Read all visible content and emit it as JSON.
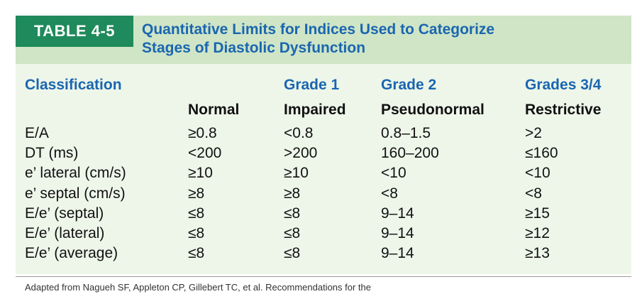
{
  "header": {
    "label": "TABLE 4-5",
    "title": [
      "Quantitative Limits for Indices Used to Categorize",
      "Stages of Diastolic Dysfunction"
    ]
  },
  "table": {
    "headers": [
      {
        "top": "Classification"
      },
      {
        "bottom": "Normal"
      },
      {
        "top": "Grade 1",
        "bottom": "Impaired"
      },
      {
        "top": "Grade 2",
        "bottom": "Pseudonormal"
      },
      {
        "top": "Grades 3/4",
        "bottom": "Restrictive"
      }
    ],
    "rows": [
      [
        "E/A",
        "≥0.8",
        "<0.8",
        "0.8–1.5",
        ">2"
      ],
      [
        "DT (ms)",
        "<200",
        ">200",
        "160–200",
        "≤160"
      ],
      [
        "e’ lateral (cm/s)",
        "≥10",
        "≥10",
        "<10",
        "<10"
      ],
      [
        "e’ septal (cm/s)",
        "≥8",
        "≥8",
        "<8",
        "<8"
      ],
      [
        "E/e’ (septal)",
        "≤8",
        "≤8",
        "9–14",
        "≥15"
      ],
      [
        "E/e’ (lateral)",
        "≤8",
        "≤8",
        "9–14",
        "≥12"
      ],
      [
        "E/e’ (average)",
        "≤8",
        "≤8",
        "9–14",
        "≥13"
      ]
    ]
  },
  "footer": "Adapted from Nagueh SF, Appleton CP, Gillebert TC, et al. Recommendations for the"
}
